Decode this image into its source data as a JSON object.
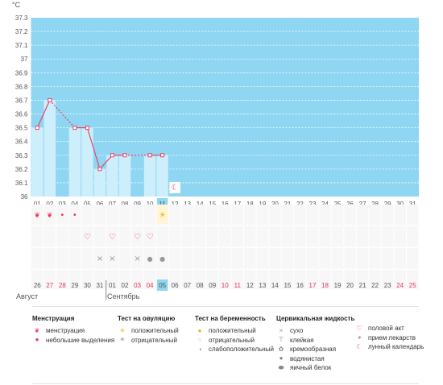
{
  "chart_data": {
    "type": "line",
    "yunit": "°C",
    "ylim": [
      36,
      37.3
    ],
    "yticks": [
      "37.3",
      "37.2",
      "37.1",
      "37",
      "36.9",
      "36.8",
      "36.7",
      "36.6",
      "36.5",
      "36.4",
      "36.3",
      "36.2",
      "36.1",
      "36"
    ],
    "days": [
      "01",
      "02",
      "03",
      "04",
      "05",
      "06",
      "07",
      "08",
      "09",
      "10",
      "11",
      "12",
      "13",
      "14",
      "15",
      "16",
      "17",
      "18",
      "19",
      "20",
      "21",
      "22",
      "23",
      "24",
      "25",
      "26",
      "27",
      "28",
      "29",
      "30",
      "31"
    ],
    "today": "11",
    "points": [
      {
        "day": 1,
        "temp": 36.5
      },
      {
        "day": 2,
        "temp": 36.7
      },
      {
        "day": 4,
        "temp": 36.5
      },
      {
        "day": 5,
        "temp": 36.5
      },
      {
        "day": 6,
        "temp": 36.2
      },
      {
        "day": 7,
        "temp": 36.3
      },
      {
        "day": 8,
        "temp": 36.3
      },
      {
        "day": 10,
        "temp": 36.3
      },
      {
        "day": 11,
        "temp": 36.3
      }
    ],
    "grid": true
  },
  "markers": {
    "menstruation": [
      1,
      2
    ],
    "light_spotting": [
      3,
      4
    ],
    "intercourse": [
      5,
      7,
      9,
      10
    ],
    "ovulation_positive": [
      11
    ],
    "cervical_dry": [
      6,
      7,
      9
    ],
    "cervical_watery": [
      10,
      11
    ],
    "lunar": [
      12
    ]
  },
  "dates_row": {
    "labels": [
      "26",
      "27",
      "28",
      "29",
      "30",
      "31",
      "01",
      "02",
      "03",
      "04",
      "05",
      "06",
      "07",
      "08",
      "09",
      "10",
      "11",
      "12",
      "13",
      "14",
      "15",
      "16",
      "17",
      "18",
      "19",
      "20",
      "21",
      "22",
      "23",
      "24",
      "25"
    ],
    "red": [
      1,
      2,
      8,
      9,
      15,
      16,
      22,
      23,
      29,
      30
    ]
  },
  "months": {
    "prev": "Август",
    "next": "Сентябрь"
  },
  "legend": {
    "menstruation": {
      "title": "Менструация",
      "items": [
        "менструация",
        "небольшие выделения"
      ]
    },
    "ovulation": {
      "title": "Тест на овуляцию",
      "items": [
        "положительный",
        "отрицательный"
      ]
    },
    "pregnancy": {
      "title": "Тест на беременность",
      "items": [
        "положительный",
        "отрицательный",
        "слабоположительный"
      ]
    },
    "cervical": {
      "title": "Цервикальная жидкость",
      "items": [
        "сухо",
        "клейкая",
        "кремообразная",
        "водянистая",
        "яичный белок"
      ]
    },
    "other": {
      "items": [
        "половой акт",
        "прием лекарств",
        "лунный календарь"
      ]
    }
  },
  "colors": {
    "plot_bg": "#8ed6f2",
    "bar": "#cdeefb",
    "line": "#e8436b",
    "accent_red": "#e8365d"
  }
}
